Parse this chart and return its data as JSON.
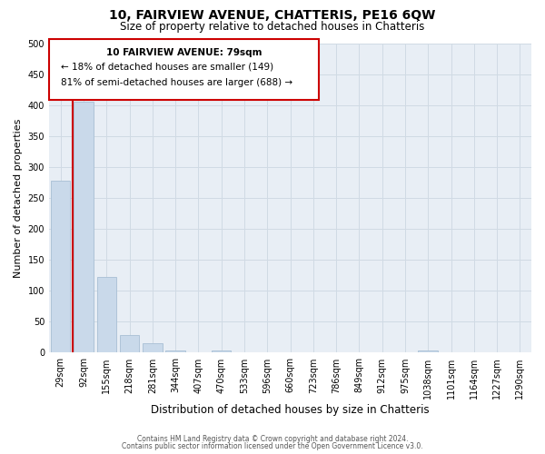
{
  "title": "10, FAIRVIEW AVENUE, CHATTERIS, PE16 6QW",
  "subtitle": "Size of property relative to detached houses in Chatteris",
  "xlabel": "Distribution of detached houses by size in Chatteris",
  "ylabel": "Number of detached properties",
  "bar_values": [
    278,
    407,
    122,
    29,
    15,
    4,
    0,
    3,
    0,
    0,
    0,
    0,
    0,
    0,
    0,
    0,
    3,
    0,
    0,
    0,
    0
  ],
  "bar_labels": [
    "29sqm",
    "92sqm",
    "155sqm",
    "218sqm",
    "281sqm",
    "344sqm",
    "407sqm",
    "470sqm",
    "533sqm",
    "596sqm",
    "660sqm",
    "723sqm",
    "786sqm",
    "849sqm",
    "912sqm",
    "975sqm",
    "1038sqm",
    "1101sqm",
    "1164sqm",
    "1227sqm",
    "1290sqm"
  ],
  "bar_color": "#c9d9ea",
  "bar_edge_color": "#a8bfd4",
  "vertical_line_x": 0.54,
  "vertical_line_color": "#cc0000",
  "annotation_box_color": "#cc0000",
  "annotation_text_line1": "10 FAIRVIEW AVENUE: 79sqm",
  "annotation_text_line2": "← 18% of detached houses are smaller (149)",
  "annotation_text_line3": "81% of semi-detached houses are larger (688) →",
  "ylim": [
    0,
    500
  ],
  "yticks": [
    0,
    50,
    100,
    150,
    200,
    250,
    300,
    350,
    400,
    450,
    500
  ],
  "grid_color": "#d0dae4",
  "background_color": "#e8eef5",
  "footer_line1": "Contains HM Land Registry data © Crown copyright and database right 2024.",
  "footer_line2": "Contains public sector information licensed under the Open Government Licence v3.0."
}
